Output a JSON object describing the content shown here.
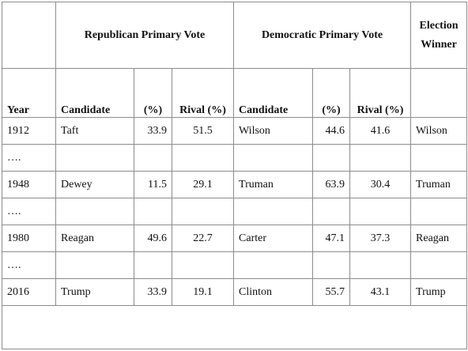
{
  "table": {
    "group_headers": {
      "republican": "Republican Primary Vote",
      "democratic": "Democratic Primary Vote",
      "winner_line1": "Election",
      "winner_line2": "Winner"
    },
    "column_headers": {
      "year": "Year",
      "rep_candidate": "Candidate",
      "rep_pct": "(%)",
      "rep_rival": "Rival (%)",
      "dem_candidate": "Candidate",
      "dem_pct": "(%)",
      "dem_rival": "Rival (%)"
    },
    "rows": [
      {
        "year": "1912",
        "rep_candidate": "Taft",
        "rep_pct": "33.9",
        "rep_rival": "51.5",
        "dem_candidate": "Wilson",
        "dem_pct": "44.6",
        "dem_rival": "41.6",
        "winner": "Wilson"
      },
      {
        "year": "….",
        "rep_candidate": "",
        "rep_pct": "",
        "rep_rival": "",
        "dem_candidate": "",
        "dem_pct": "",
        "dem_rival": "",
        "winner": ""
      },
      {
        "year": "1948",
        "rep_candidate": "Dewey",
        "rep_pct": "11.5",
        "rep_rival": "29.1",
        "dem_candidate": "Truman",
        "dem_pct": "63.9",
        "dem_rival": "30.4",
        "winner": "Truman"
      },
      {
        "year": "….",
        "rep_candidate": "",
        "rep_pct": "",
        "rep_rival": "",
        "dem_candidate": "",
        "dem_pct": "",
        "dem_rival": "",
        "winner": ""
      },
      {
        "year": "1980",
        "rep_candidate": "Reagan",
        "rep_pct": "49.6",
        "rep_rival": "22.7",
        "dem_candidate": "Carter",
        "dem_pct": "47.1",
        "dem_rival": "37.3",
        "winner": "Reagan"
      },
      {
        "year": "….",
        "rep_candidate": "",
        "rep_pct": "",
        "rep_rival": "",
        "dem_candidate": "",
        "dem_pct": "",
        "dem_rival": "",
        "winner": ""
      },
      {
        "year": "2016",
        "rep_candidate": "Trump",
        "rep_pct": "33.9",
        "rep_rival": "19.1",
        "dem_candidate": "Clinton",
        "dem_pct": "55.7",
        "dem_rival": "43.1",
        "winner": "Trump"
      }
    ]
  }
}
